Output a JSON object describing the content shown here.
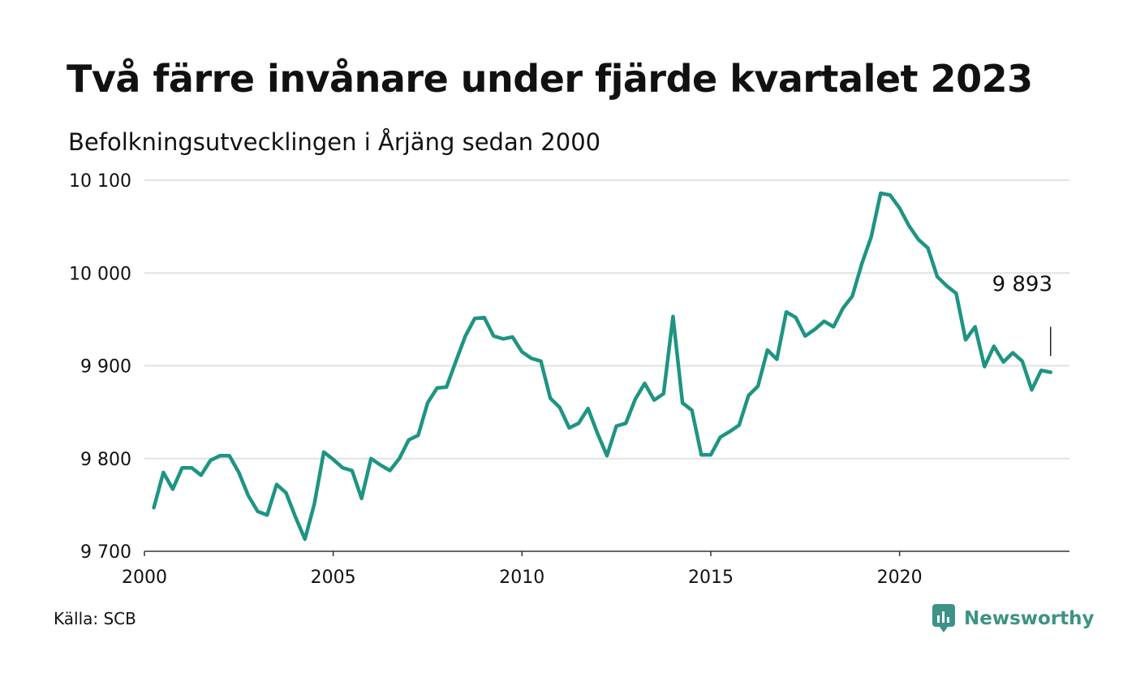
{
  "title": "Två färre invånare under fjärde kvartalet 2023",
  "subtitle": "Befolkningsutvecklingen i Årjäng sedan 2000",
  "source": "Källa: SCB",
  "brand": {
    "name": "Newsworthy",
    "color": "#3d9385",
    "icon": "newsworthy-logo-icon"
  },
  "colors": {
    "line": "#1f9483",
    "grid": "#e2e2e2",
    "text": "#111111"
  },
  "chart_data": {
    "type": "line",
    "title": "Två färre invånare under fjärde kvartalet 2023",
    "subtitle": "Befolkningsutvecklingen i Årjäng sedan 2000",
    "xlabel": "",
    "ylabel": "",
    "xlim": [
      2000,
      2024.5
    ],
    "ylim": [
      9700,
      10100
    ],
    "y_ticks": [
      9700,
      9800,
      9900,
      10000,
      10100
    ],
    "y_tick_labels": [
      "9 700",
      "9 800",
      "9 900",
      "10 000",
      "10 100"
    ],
    "x_ticks": [
      2000,
      2005,
      2010,
      2015,
      2020
    ],
    "x_tick_labels": [
      "2000",
      "2005",
      "2010",
      "2015",
      "2020"
    ],
    "grid": "horizontal",
    "annotation": {
      "label": "9 893",
      "x": 2024.0,
      "y": 9893
    },
    "series": [
      {
        "x": [
          2000.25,
          2000.5,
          2000.75,
          2001.0,
          2001.25,
          2001.5,
          2001.75,
          2002.0,
          2002.25,
          2002.5,
          2002.75,
          2003.0,
          2003.25,
          2003.5,
          2003.75,
          2004.0,
          2004.25,
          2004.5,
          2004.75,
          2005.0,
          2005.25,
          2005.5,
          2005.75,
          2006.0,
          2006.25,
          2006.5,
          2006.75,
          2007.0,
          2007.25,
          2007.5,
          2007.75,
          2008.0,
          2008.25,
          2008.5,
          2008.75,
          2009.0,
          2009.25,
          2009.5,
          2009.75,
          2010.0,
          2010.25,
          2010.5,
          2010.75,
          2011.0,
          2011.25,
          2011.5,
          2011.75,
          2012.0,
          2012.25,
          2012.5,
          2012.75,
          2013.0,
          2013.25,
          2013.5,
          2013.75,
          2014.0,
          2014.25,
          2014.5,
          2014.75,
          2015.0,
          2015.25,
          2015.5,
          2015.75,
          2016.0,
          2016.25,
          2016.5,
          2016.75,
          2017.0,
          2017.25,
          2017.5,
          2017.75,
          2018.0,
          2018.25,
          2018.5,
          2018.75,
          2019.0,
          2019.25,
          2019.5,
          2019.75,
          2020.0,
          2020.25,
          2020.5,
          2020.75,
          2021.0,
          2021.25,
          2021.5,
          2021.75,
          2022.0,
          2022.25,
          2022.5,
          2022.75,
          2023.0,
          2023.25,
          2023.5,
          2023.75,
          2024.0
        ],
        "y": [
          9747,
          9785,
          9767,
          9790,
          9790,
          9782,
          9798,
          9803,
          9803,
          9785,
          9760,
          9743,
          9739,
          9772,
          9763,
          9737,
          9713,
          9751,
          9807,
          9799,
          9790,
          9787,
          9757,
          9800,
          9793,
          9787,
          9800,
          9820,
          9825,
          9860,
          9876,
          9877,
          9905,
          9932,
          9951,
          9952,
          9932,
          9929,
          9931,
          9915,
          9908,
          9905,
          9865,
          9855,
          9833,
          9838,
          9854,
          9827,
          9803,
          9835,
          9838,
          9864,
          9881,
          9863,
          9870,
          9953,
          9860,
          9852,
          9804,
          9804,
          9823,
          9829,
          9836,
          9868,
          9878,
          9917,
          9907,
          9958,
          9952,
          9932,
          9939,
          9948,
          9942,
          9962,
          9975,
          10010,
          10039,
          10086,
          10084,
          10070,
          10051,
          10036,
          10027,
          9996,
          9986,
          9978,
          9928,
          9942,
          9899,
          9921,
          9904,
          9914,
          9905,
          9874,
          9895,
          9893
        ]
      }
    ]
  }
}
